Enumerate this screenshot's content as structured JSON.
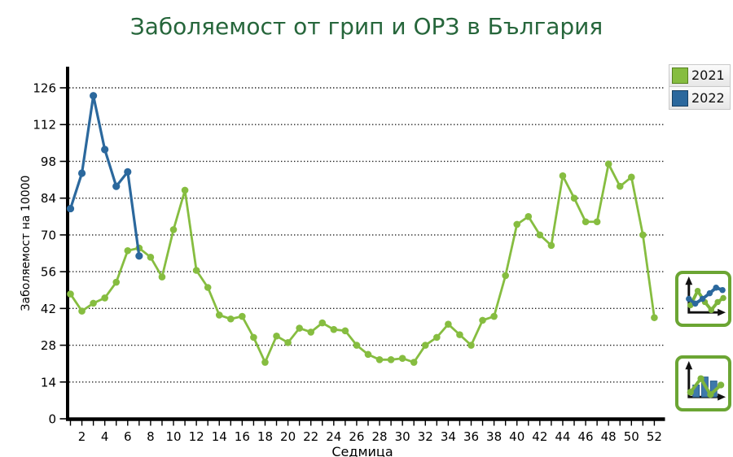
{
  "theme": {
    "title_color": "#26663B",
    "green": "#86BD40",
    "green_border": "#55801E",
    "blue": "#2B689D",
    "blue_border": "#173F61",
    "axis_color": "#000000",
    "grid_color": "#222222",
    "icon_border_green": "#6BA533"
  },
  "icons": {
    "button1": "line-chart-icon",
    "button2": "bar-line-combo-chart-icon"
  },
  "chart_data": {
    "type": "line",
    "title": "Заболяемост от грип и ОРЗ в България",
    "xlabel": "Седмица",
    "ylabel": "Заболяемост на 10000",
    "x_tick_labels": [
      2,
      4,
      6,
      8,
      10,
      12,
      14,
      16,
      18,
      20,
      22,
      24,
      26,
      28,
      30,
      32,
      34,
      36,
      38,
      40,
      42,
      44,
      46,
      48,
      50,
      52
    ],
    "y_ticks": [
      0,
      14,
      28,
      42,
      56,
      70,
      84,
      98,
      112,
      126
    ],
    "xlim": [
      1,
      52
    ],
    "ylim": [
      0,
      132
    ],
    "grid": "horizontal-dotted",
    "legend_position": "top-right",
    "series": [
      {
        "name": "2021",
        "color": "#86BD40",
        "border": "#55801E",
        "x": [
          1,
          2,
          3,
          4,
          5,
          6,
          7,
          8,
          9,
          10,
          11,
          12,
          13,
          14,
          15,
          16,
          17,
          18,
          19,
          20,
          21,
          22,
          23,
          24,
          25,
          26,
          27,
          28,
          29,
          30,
          31,
          32,
          33,
          34,
          35,
          36,
          37,
          38,
          39,
          40,
          41,
          42,
          43,
          44,
          45,
          46,
          47,
          48,
          49,
          50,
          51,
          52
        ],
        "values": [
          47.5,
          41,
          44,
          46,
          52,
          64,
          65,
          61.5,
          54,
          72,
          87,
          56.5,
          50,
          39.5,
          38,
          39,
          31,
          21.5,
          31.5,
          29,
          34.5,
          33,
          36.5,
          34,
          33.5,
          28,
          24.5,
          22.5,
          22.5,
          23,
          21.5,
          28,
          31,
          36,
          32,
          28,
          37.5,
          39,
          54.5,
          74,
          77,
          70,
          66,
          92.5,
          84,
          75,
          75,
          97,
          88.5,
          92,
          70,
          38.5
        ]
      },
      {
        "name": "2022",
        "color": "#2B689D",
        "border": "#173F61",
        "x": [
          1,
          2,
          3,
          4,
          5,
          6,
          7
        ],
        "values": [
          80,
          93.5,
          123,
          102.5,
          88.5,
          94,
          62
        ]
      }
    ]
  }
}
